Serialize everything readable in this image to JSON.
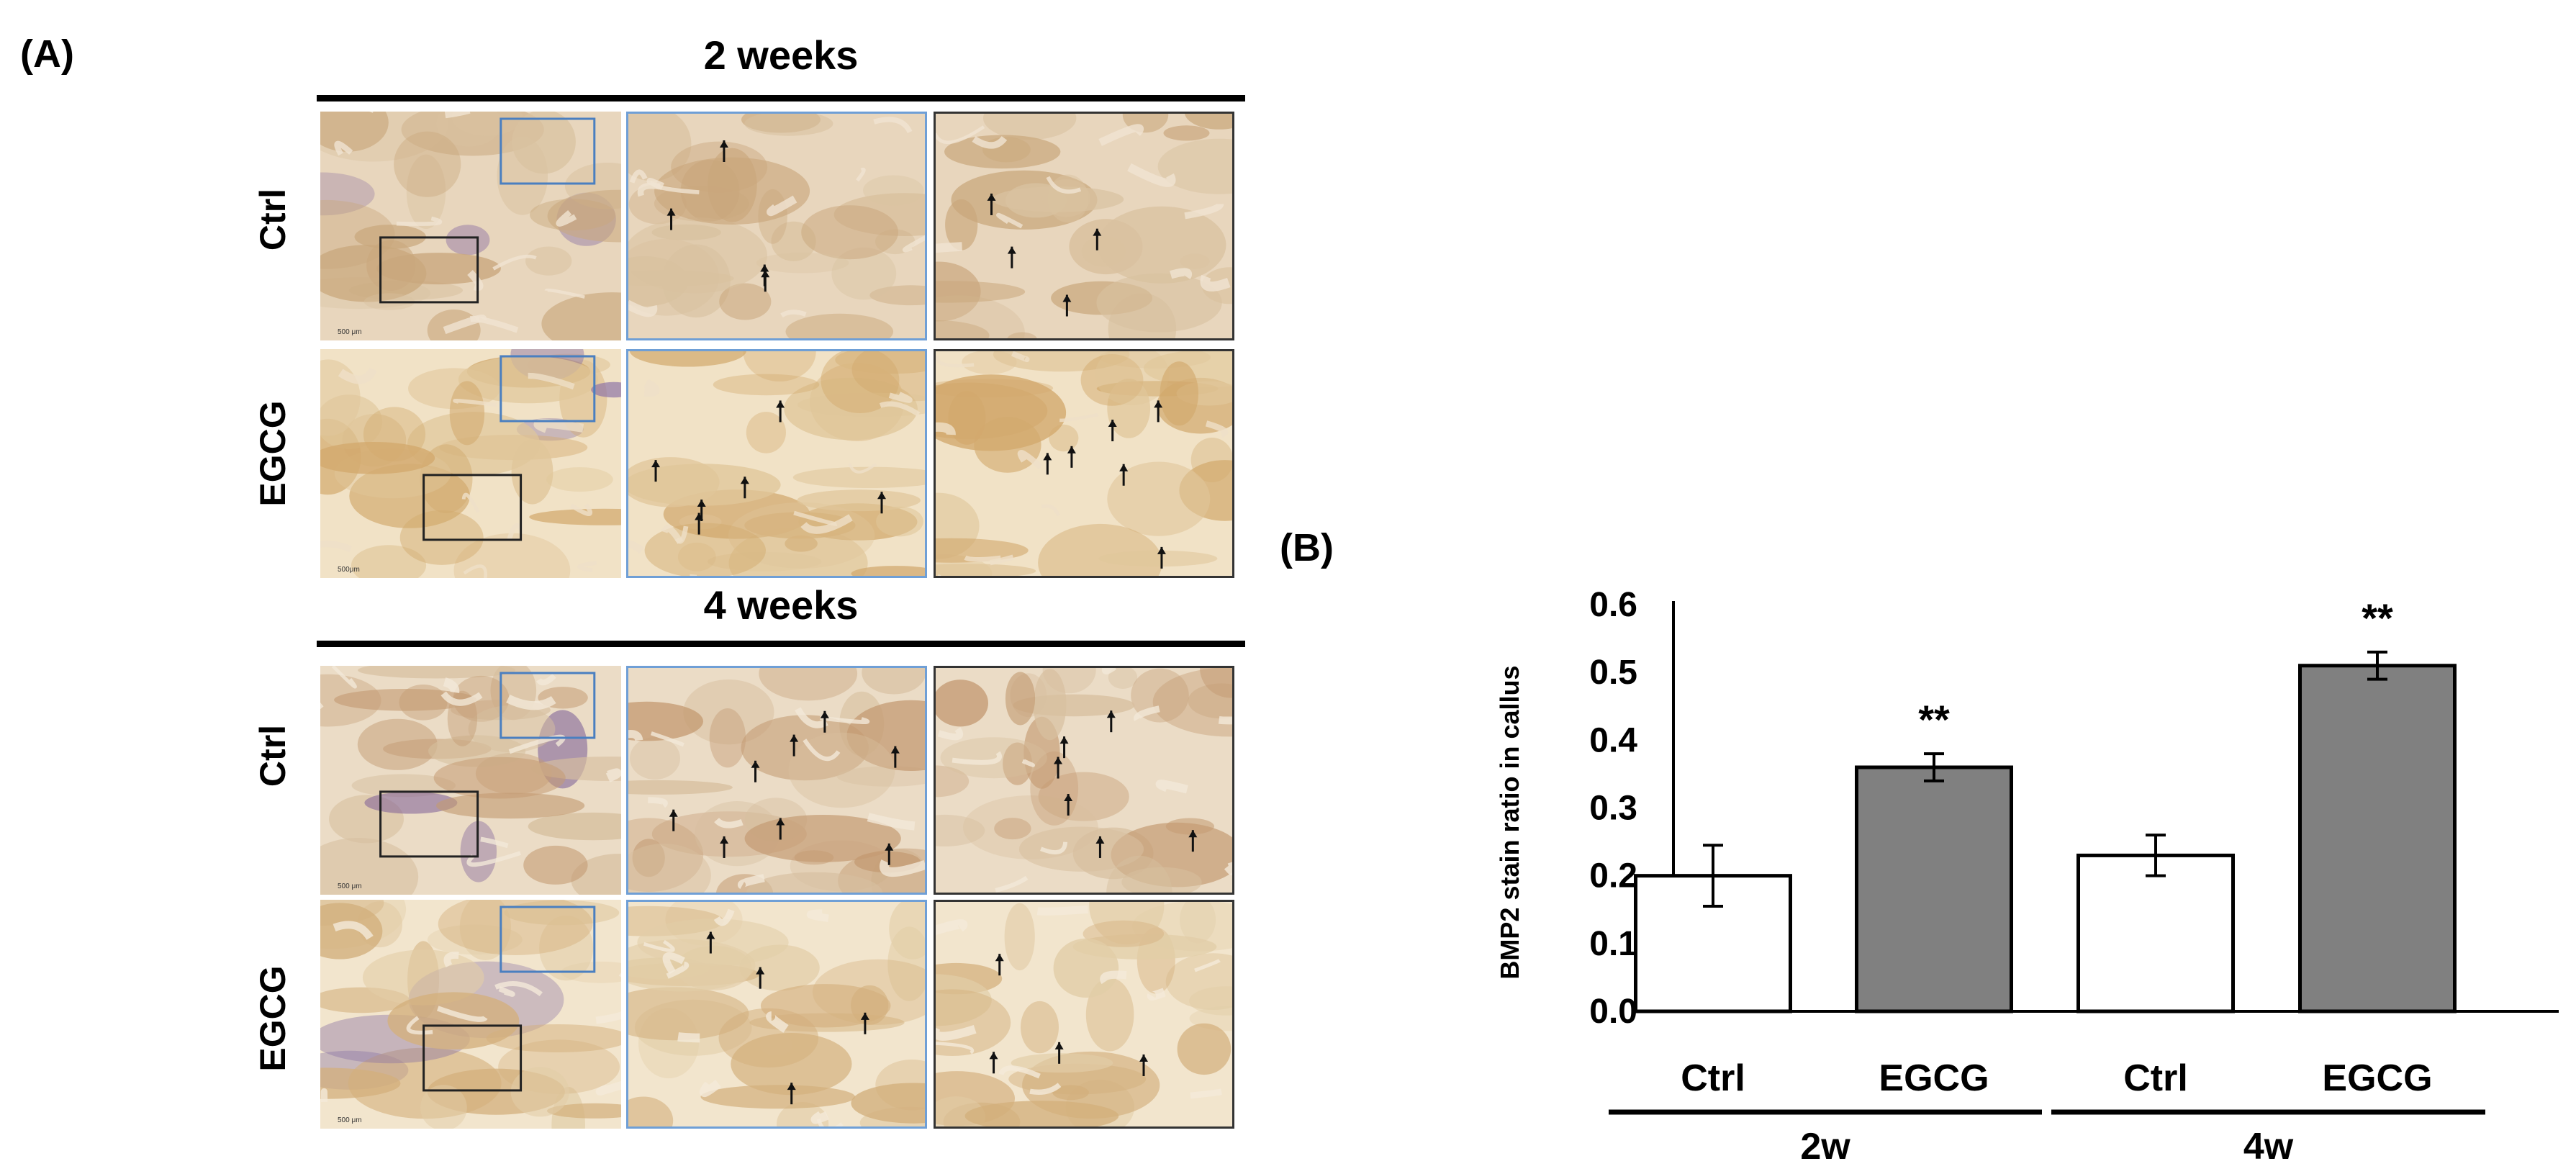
{
  "panel_a": {
    "letter": "(A)",
    "sections": [
      {
        "title": "2 weeks",
        "rows": [
          "Ctrl",
          "EGCG"
        ]
      },
      {
        "title": "4 weeks",
        "rows": [
          "Ctrl",
          "EGCG"
        ]
      }
    ],
    "scale_labels": [
      "500 μm",
      "500μm",
      "500 μm",
      "500 μm"
    ]
  },
  "panel_b": {
    "letter": "(B)"
  },
  "chart_data": {
    "type": "bar",
    "ylabel": "BMP2 stain ratio in callus",
    "ylim": [
      0.0,
      0.6
    ],
    "yticks": [
      "0.0",
      "0.1",
      "0.2",
      "0.3",
      "0.4",
      "0.5",
      "0.6"
    ],
    "categories": [
      "Ctrl",
      "EGCG",
      "Ctrl",
      "EGCG"
    ],
    "groups": [
      "2w",
      "4w"
    ],
    "values": [
      0.2,
      0.36,
      0.23,
      0.51
    ],
    "errors": [
      0.045,
      0.02,
      0.03,
      0.02
    ],
    "significance": [
      "",
      "**",
      "",
      "**"
    ],
    "colors": {
      "Ctrl": "#ffffff",
      "EGCG": "#808080"
    },
    "grid": false
  }
}
